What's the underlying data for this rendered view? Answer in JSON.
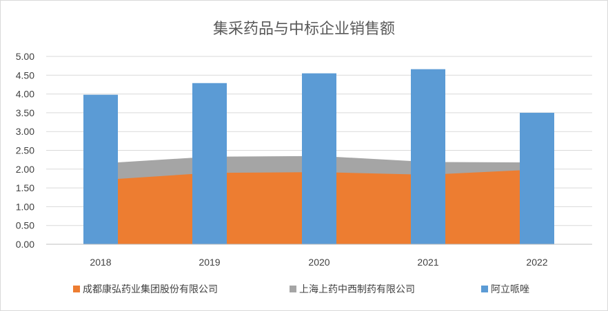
{
  "chart_data": {
    "type": "bar",
    "title": "集采药品与中标企业销售额",
    "categories": [
      "2018",
      "2019",
      "2020",
      "2021",
      "2022"
    ],
    "ylim": [
      0,
      5
    ],
    "yticks": [
      "0.00",
      "0.50",
      "1.00",
      "1.50",
      "2.00",
      "2.50",
      "3.00",
      "3.50",
      "4.00",
      "4.50",
      "5.00"
    ],
    "grid": true,
    "legend_position": "bottom",
    "series": [
      {
        "name": "成都康弘药业集团股份有限公司",
        "kind": "area",
        "color": "#ED7D31",
        "values": [
          1.74,
          1.9,
          1.92,
          1.85,
          1.97
        ]
      },
      {
        "name": "上海上药中西制药有限公司",
        "kind": "area",
        "color": "#A5A5A5",
        "values": [
          2.18,
          2.33,
          2.35,
          2.19,
          2.18
        ]
      },
      {
        "name": "阿立哌唑",
        "kind": "bar",
        "color": "#5B9BD5",
        "values": [
          3.98,
          4.29,
          4.55,
          4.66,
          3.5
        ]
      }
    ]
  }
}
